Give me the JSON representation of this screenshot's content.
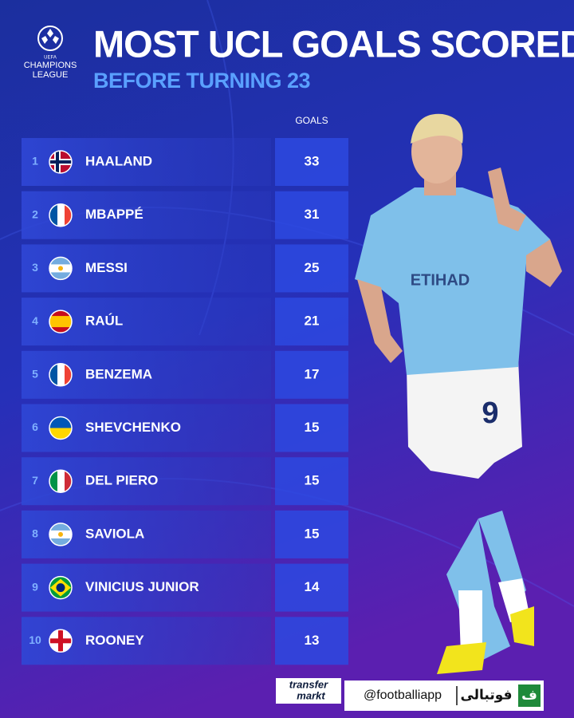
{
  "logo": {
    "line1": "UEFA",
    "line2": "CHAMPIONS",
    "line3": "LEAGUE"
  },
  "header": {
    "title": "MOST UCL GOALS SCORED",
    "subtitle": "BEFORE TURNING 23"
  },
  "table": {
    "column_header": "GOALS",
    "rows": [
      {
        "rank": 1,
        "player": "HAALAND",
        "goals": 33
      },
      {
        "rank": 2,
        "player": "MBAPPÉ",
        "goals": 31
      },
      {
        "rank": 3,
        "player": "MESSI",
        "goals": 25
      },
      {
        "rank": 4,
        "player": "RAÚL",
        "goals": 21
      },
      {
        "rank": 5,
        "player": "BENZEMA",
        "goals": 17
      },
      {
        "rank": 6,
        "player": "SHEVCHENKO",
        "goals": 15
      },
      {
        "rank": 7,
        "player": "DEL PIERO",
        "goals": 15
      },
      {
        "rank": 8,
        "player": "SAVIOLA",
        "goals": 15
      },
      {
        "rank": 9,
        "player": "VINICIUS JUNIOR",
        "goals": 14
      },
      {
        "rank": 10,
        "player": "ROONEY",
        "goals": 13
      }
    ]
  },
  "footer": {
    "source_line1": "transfer",
    "source_line2": "markt",
    "handle": "@footballiapp",
    "brand": "فوتبالی",
    "brand_icon": "ف"
  }
}
